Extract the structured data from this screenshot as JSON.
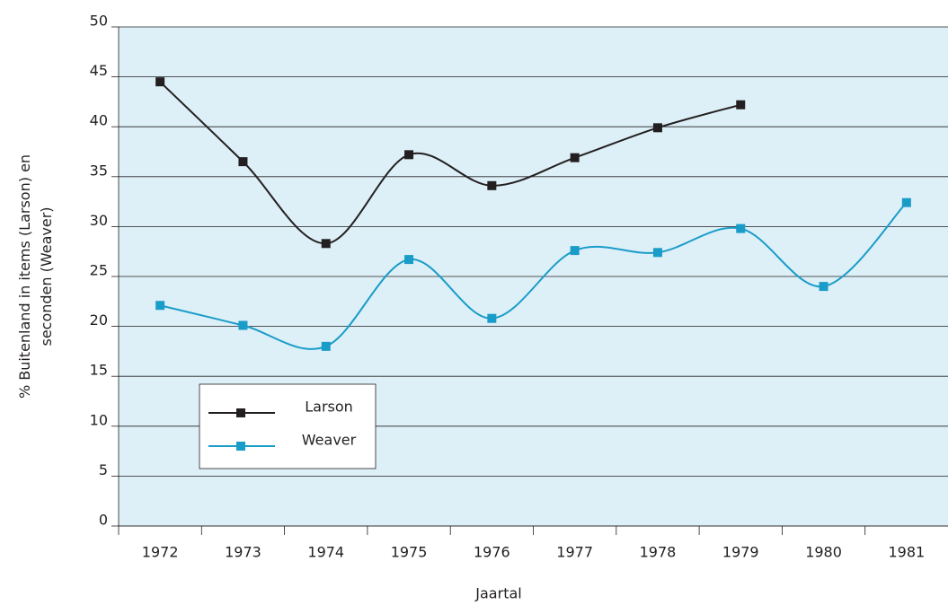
{
  "chart_data": {
    "type": "line",
    "xlabel": "Jaartal",
    "ylabel": [
      "% Buitenland in items (Larson) en",
      "seconden (Weaver)"
    ],
    "categories": [
      "1972",
      "1973",
      "1974",
      "1975",
      "1976",
      "1977",
      "1978",
      "1979",
      "1980",
      "1981"
    ],
    "series": [
      {
        "name": "Larson",
        "color": "#231f20",
        "values": [
          44.5,
          36.5,
          28.3,
          37.2,
          34.1,
          36.9,
          39.9,
          42.2,
          null,
          null
        ]
      },
      {
        "name": "Weaver",
        "color": "#1a9cc8",
        "values": [
          22.1,
          20.1,
          18.0,
          26.7,
          20.8,
          27.6,
          27.4,
          29.8,
          24.0,
          32.4
        ]
      }
    ],
    "ylim": [
      0,
      50
    ],
    "yticks": [
      0,
      5,
      10,
      15,
      20,
      25,
      30,
      35,
      40,
      45,
      50
    ],
    "grid": true,
    "smooth": true,
    "background": "#ddf0f8"
  }
}
